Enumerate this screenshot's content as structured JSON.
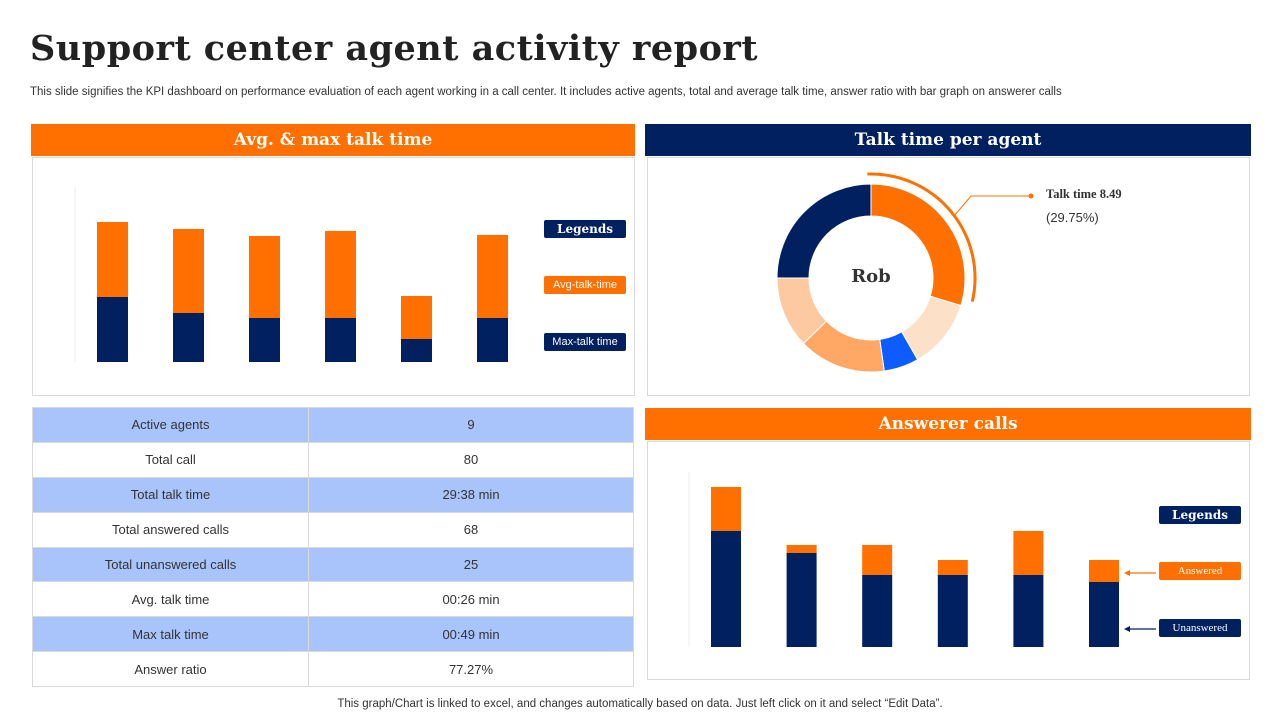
{
  "title": "Support center agent activity report",
  "subtitle": "This slide signifies the KPI dashboard on performance evaluation of each agent working in a call center. It includes active agents, total and average talk time, answer ratio with bar graph on answerer calls",
  "footer": "This graph/Chart is linked to excel, and changes automatically based on data. Just left click on it and select “Edit Data”.",
  "colors": {
    "orange": "#ff7000",
    "navy": "#002060",
    "blue": "#0d5cff",
    "table_alt": "#a9c4fb"
  },
  "chart_data": [
    {
      "type": "bar",
      "stacked": true,
      "title": "Avg. & max talk time",
      "legend_title": "Legends",
      "legend_placement": "right",
      "categories": [
        "",
        "",
        "",
        "",
        "",
        ""
      ],
      "series": [
        {
          "name": "Max-talk time",
          "color": "#002060",
          "values": [
            65,
            49,
            44,
            44,
            23,
            44
          ]
        },
        {
          "name": "Avg-talk-time",
          "color": "#ff7000",
          "values": [
            75,
            84,
            82,
            87,
            43,
            83
          ]
        }
      ],
      "ylim": [
        0,
        170
      ],
      "grid": false
    },
    {
      "type": "pie",
      "donut": true,
      "title": "Talk time per agent",
      "center_label": "Rob",
      "callout": {
        "label": "Talk time 8.49",
        "percent": "(29.75%)"
      },
      "values": [
        29.75,
        12,
        6,
        15,
        12.25,
        25
      ],
      "colors": [
        "#ff7000",
        "#fde0c8",
        "#0d5cff",
        "#ffa866",
        "#fdc9a0",
        "#002060"
      ]
    },
    {
      "type": "bar",
      "stacked": true,
      "title": "Answerer calls",
      "legend_title": "Legends",
      "legend_placement": "right",
      "categories": [
        "",
        "",
        "",
        "",
        "",
        ""
      ],
      "series": [
        {
          "name": "Unanswered",
          "color": "#002060",
          "values": [
            116,
            94,
            72,
            72,
            72,
            65
          ]
        },
        {
          "name": "Answered",
          "color": "#ff7000",
          "values": [
            44,
            8,
            30,
            15,
            44,
            22
          ]
        }
      ],
      "ylim": [
        0,
        170
      ],
      "grid": false
    }
  ],
  "kpi_table": [
    [
      "Active agents",
      "9"
    ],
    [
      "Total call",
      "80"
    ],
    [
      "Total talk time",
      "29:38 min"
    ],
    [
      "Total answered calls",
      "68"
    ],
    [
      "Total unanswered calls",
      "25"
    ],
    [
      "Avg. talk time",
      "00:26 min"
    ],
    [
      "Max talk time",
      "00:49 min"
    ],
    [
      "Answer ratio",
      "77.27%"
    ]
  ]
}
